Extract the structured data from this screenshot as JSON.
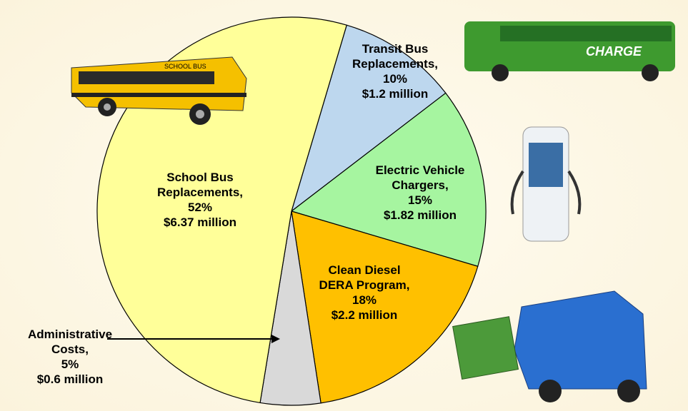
{
  "chart_data": {
    "type": "pie",
    "categories": [
      "Transit Bus Replacements,",
      "Electric Vehicle Chargers,",
      "Clean Diesel DERA Program,",
      "Administrative Costs,",
      "School Bus Replacements,"
    ],
    "values": [
      10,
      15,
      18,
      5,
      52
    ],
    "value_labels": [
      "10%",
      "15%",
      "18%",
      "5%",
      "52%"
    ],
    "amount_labels": [
      "$1.2 million",
      "$1.82 million",
      "$2.2 million",
      "$0.6 million",
      "$6.37 million"
    ],
    "colors": [
      "#bdd7ee",
      "#a6f5a0",
      "#ffc000",
      "#d9d9d9",
      "#ffff99"
    ]
  }
}
